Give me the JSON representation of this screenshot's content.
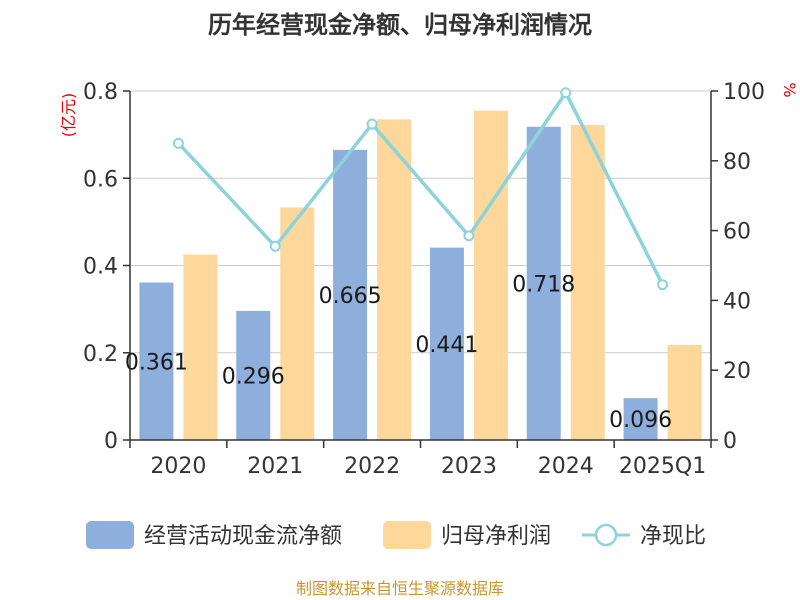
{
  "chart_data": {
    "type": "bar",
    "title": "历年经营现金净额、归母净利润情况",
    "categories": [
      "2020",
      "2021",
      "2022",
      "2023",
      "2024",
      "2025Q1"
    ],
    "y_left": {
      "unit": "(亿元)",
      "min": 0,
      "max": 0.8,
      "ticks": [
        "0",
        "0.2",
        "0.4",
        "0.6",
        "0.8"
      ]
    },
    "y_right": {
      "unit": "%",
      "min": 0,
      "max": 100,
      "ticks": [
        "0",
        "20",
        "40",
        "60",
        "80",
        "100"
      ]
    },
    "series": [
      {
        "name": "经营活动现金流净额",
        "type": "bar",
        "axis": "left",
        "color": "#8eafdb",
        "values": [
          0.361,
          0.296,
          0.665,
          0.441,
          0.718,
          0.096
        ],
        "labels": [
          "0.361",
          "0.296",
          "0.665",
          "0.441",
          "0.718",
          "0.096"
        ]
      },
      {
        "name": "归母净利润",
        "type": "bar",
        "axis": "left",
        "color": "#fdd89a",
        "values": [
          0.425,
          0.533,
          0.735,
          0.755,
          0.722,
          0.218
        ]
      },
      {
        "name": "净现比",
        "type": "line",
        "axis": "right",
        "color": "#8dd3dc",
        "values": [
          85,
          55.5,
          90.5,
          58.5,
          99.5,
          44.5
        ]
      }
    ],
    "grid": true,
    "legend": "bottom"
  },
  "source": "制图数据来自恒生聚源数据库"
}
